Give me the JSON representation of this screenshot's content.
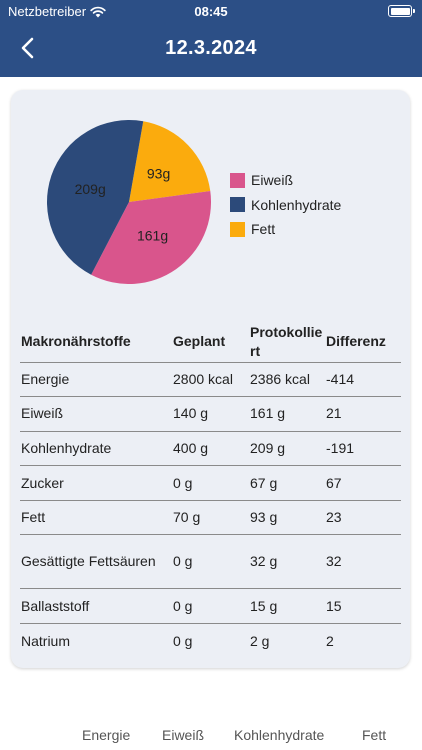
{
  "status": {
    "carrier": "Netzbetreiber",
    "time": "08:45"
  },
  "header": {
    "title": "12.3.2024"
  },
  "colors": {
    "protein": "#d9558c",
    "carbs": "#2c4a7a",
    "fat": "#fbab0d"
  },
  "chart_data": {
    "type": "pie",
    "unit": "g",
    "slices": [
      {
        "name": "Eiweiß",
        "value": 161,
        "label": "161g",
        "color": "#d9558c"
      },
      {
        "name": "Kohlenhydrate",
        "value": 209,
        "label": "209g",
        "color": "#2c4a7a"
      },
      {
        "name": "Fett",
        "value": 93,
        "label": "93g",
        "color": "#fbab0d"
      }
    ],
    "legend": [
      "Eiweiß",
      "Kohlenhydrate",
      "Fett"
    ],
    "legend_position": "right"
  },
  "table": {
    "headers": [
      "Makronährstoffe",
      "Geplant",
      "Protokolliert",
      "Differenz"
    ],
    "rows": [
      {
        "name": "Energie",
        "planned": "2800 kcal",
        "logged": "2386 kcal",
        "diff": "-414"
      },
      {
        "name": "Eiweiß",
        "planned": "140 g",
        "logged": "161 g",
        "diff": "21"
      },
      {
        "name": "Kohlenhydrate",
        "planned": "400 g",
        "logged": "209 g",
        "diff": "-191"
      },
      {
        "name": "Zucker",
        "planned": "0 g",
        "logged": "67 g",
        "diff": "67"
      },
      {
        "name": "Fett",
        "planned": "70 g",
        "logged": "93 g",
        "diff": "23"
      },
      {
        "name": "Gesättigte Fettsäuren",
        "planned": "0 g",
        "logged": "32 g",
        "diff": "32"
      },
      {
        "name": "Ballaststoff",
        "planned": "0 g",
        "logged": "15 g",
        "diff": "15"
      },
      {
        "name": "Natrium",
        "planned": "0 g",
        "logged": "2 g",
        "diff": "2"
      }
    ]
  },
  "bottom_tabs": [
    "Energie",
    "Eiweiß",
    "Kohlenhydrate",
    "Fett"
  ]
}
